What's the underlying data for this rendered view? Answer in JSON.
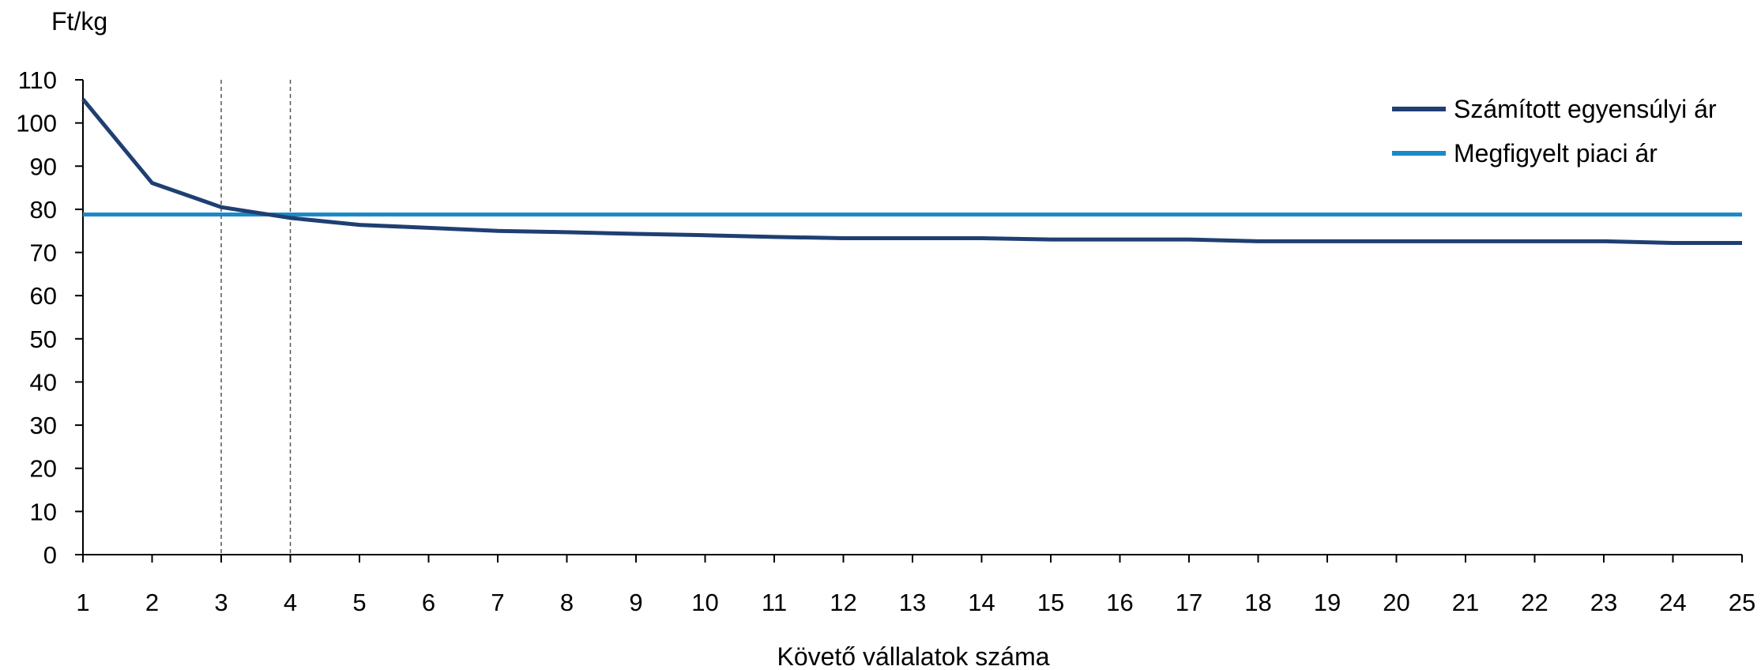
{
  "chart_data": {
    "type": "line",
    "title": "",
    "ylabel": "Ft/kg",
    "xlabel": "Követő vállalatok száma",
    "x": [
      1,
      2,
      3,
      4,
      5,
      6,
      7,
      8,
      9,
      10,
      11,
      12,
      13,
      14,
      15,
      16,
      17,
      18,
      19,
      20,
      21,
      22,
      23,
      24,
      25
    ],
    "xlim": [
      1,
      25
    ],
    "ylim": [
      0,
      110
    ],
    "yticks": [
      0,
      10,
      20,
      30,
      40,
      50,
      60,
      70,
      80,
      90,
      100,
      110
    ],
    "xticks": [
      1,
      2,
      3,
      4,
      5,
      6,
      7,
      8,
      9,
      10,
      11,
      12,
      13,
      14,
      15,
      16,
      17,
      18,
      19,
      20,
      21,
      22,
      23,
      24,
      25
    ],
    "grid": false,
    "legend_position": "top-right",
    "vertical_reference_lines": [
      3,
      4
    ],
    "series": [
      {
        "name": "Számított egyensúlyi ár",
        "color": "#1f3f72",
        "values": [
          105.5,
          86.1,
          80.5,
          78.0,
          76.4,
          75.7,
          75.0,
          74.7,
          74.3,
          74.0,
          73.6,
          73.3,
          73.3,
          73.3,
          73.0,
          73.0,
          73.0,
          72.6,
          72.6,
          72.6,
          72.6,
          72.6,
          72.6,
          72.2,
          72.2
        ]
      },
      {
        "name": "Megfigyelt piaci ár",
        "color": "#1a8ac8",
        "values": [
          78.8,
          78.8,
          78.8,
          78.8,
          78.8,
          78.8,
          78.8,
          78.8,
          78.8,
          78.8,
          78.8,
          78.8,
          78.8,
          78.8,
          78.8,
          78.8,
          78.8,
          78.8,
          78.8,
          78.8,
          78.8,
          78.8,
          78.8,
          78.8,
          78.8
        ]
      }
    ]
  }
}
